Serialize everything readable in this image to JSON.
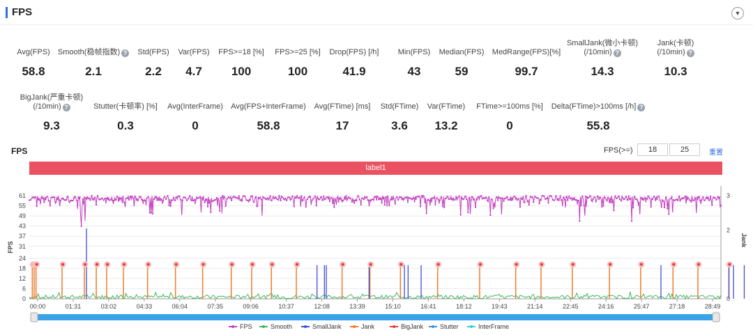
{
  "panel": {
    "title": "FPS",
    "collapse_icon": "▼"
  },
  "stats_row1": [
    {
      "label": "Avg(FPS)",
      "value": "58.8"
    },
    {
      "label": "Smooth(稳帧指数)",
      "value": "2.1",
      "help": true
    },
    {
      "label": "Std(FPS)",
      "value": "2.2"
    },
    {
      "label": "Var(FPS)",
      "value": "4.7"
    },
    {
      "label": "FPS>=18 [%]",
      "value": "100"
    },
    {
      "label": "FPS>=25 [%]",
      "value": "100"
    },
    {
      "label": "Drop(FPS) [/h]",
      "value": "41.9"
    },
    {
      "label": "Min(FPS)",
      "value": "43"
    },
    {
      "label": "Median(FPS)",
      "value": "59"
    },
    {
      "label": "MedRange(FPS)[%]",
      "value": "99.7"
    },
    {
      "label": "SmallJank(微小卡顿)",
      "label2": "(/10min)",
      "value": "14.3",
      "help": true
    },
    {
      "label": "Jank(卡顿)",
      "label2": "(/10min)",
      "value": "10.3",
      "help": true
    }
  ],
  "stats_row2": [
    {
      "label": "BigJank(严重卡顿)",
      "label2": "(/10min)",
      "value": "9.3",
      "help": true
    },
    {
      "label": "Stutter(卡顿率) [%]",
      "value": "0.3"
    },
    {
      "label": "Avg(InterFrame)",
      "value": "0"
    },
    {
      "label": "Avg(FPS+InterFrame)",
      "value": "58.8"
    },
    {
      "label": "Avg(FTime) [ms]",
      "value": "17"
    },
    {
      "label": "Std(FTime)",
      "value": "3.6"
    },
    {
      "label": "Var(FTime)",
      "value": "13.2"
    },
    {
      "label": "FTime>=100ms [%]",
      "value": "0"
    },
    {
      "label": "Delta(FTime)>100ms [/h]",
      "value": "55.8",
      "help": true
    }
  ],
  "chart_controls": {
    "title": "FPS",
    "threshold_label": "FPS(>=)",
    "threshold_1": "18",
    "threshold_2": "25",
    "reset_label": "重置",
    "label_bar": "label1"
  },
  "chart_data": {
    "type": "line",
    "title": "FPS",
    "ylabel": "FPS",
    "ylabel_right": "Jank",
    "ylim": [
      0,
      61
    ],
    "ylim_right": [
      0,
      3
    ],
    "yticks": [
      0,
      6,
      12,
      18,
      24,
      31,
      37,
      43,
      49,
      55,
      61
    ],
    "yticks_right": [
      0,
      1,
      2,
      3
    ],
    "xticks": [
      "00:00",
      "01:31",
      "03:02",
      "04:33",
      "06:04",
      "07:35",
      "09:06",
      "10:37",
      "12:08",
      "13:39",
      "15:10",
      "16:41",
      "18:12",
      "19:43",
      "21:14",
      "22:45",
      "24:16",
      "25:47",
      "27:18",
      "28:49"
    ],
    "x_end_seconds": 1860,
    "series": [
      {
        "name": "FPS",
        "color": "#c33fc0",
        "axis": "left",
        "baseline": 59,
        "min": 43,
        "description_values": "approx 55-61 throughout, occasional dips to ~43-50"
      },
      {
        "name": "Smooth",
        "color": "#3cb45a",
        "axis": "left",
        "range": [
          0,
          6
        ]
      },
      {
        "name": "SmallJank",
        "color": "#3b4fd8",
        "axis": "right"
      },
      {
        "name": "Jank",
        "color": "#f07a2a",
        "axis": "right"
      },
      {
        "name": "BigJank",
        "color": "#e83a3a",
        "axis": "right"
      },
      {
        "name": "Stutter",
        "color": "#3a8ee8",
        "axis": "right"
      },
      {
        "name": "InterFrame",
        "color": "#2ed3d3",
        "axis": "right"
      }
    ],
    "bigjank_times_s": [
      10,
      15,
      20,
      90,
      150,
      182,
      210,
      255,
      320,
      395,
      468,
      545,
      600,
      653,
      720,
      843,
      918,
      1000,
      1100,
      1213,
      1310,
      1378,
      1462,
      1562,
      1646,
      1733,
      1800,
      1883
    ],
    "smalljank_times_s": [
      150,
      770,
      790,
      795,
      910,
      1005,
      1015,
      1050,
      1695,
      1878,
      1890,
      1919
    ],
    "smalljank_peak_time_s": 150,
    "fps_dip_times_s": [
      150,
      140,
      410,
      1240,
      1480,
      1620
    ]
  }
}
